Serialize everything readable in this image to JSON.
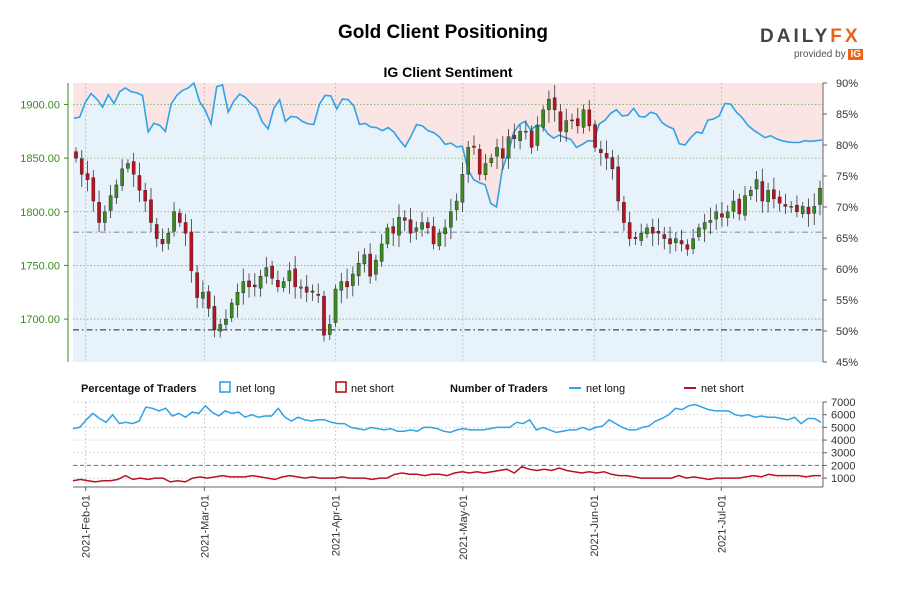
{
  "header": {
    "title": "Gold Client Positioning",
    "brand": {
      "daily": "DAILY",
      "fx": "FX",
      "provided_by": "provided by",
      "ig": "IG"
    }
  },
  "chart_data": [
    {
      "type": "candlestick",
      "title": "IG Client Sentiment",
      "dates_start": "2021-01-29",
      "price_axis": {
        "ticks": [
          "1700.00",
          "1750.00",
          "1800.00",
          "1850.00",
          "1900.00"
        ],
        "values": [
          1700,
          1750,
          1800,
          1850,
          1900
        ],
        "ylim": [
          1660,
          1920
        ],
        "side": "left",
        "color": "#3c8a1e"
      },
      "pct_axis": {
        "ticks": [
          "45%",
          "50%",
          "55%",
          "60%",
          "65%",
          "70%",
          "75%",
          "80%",
          "85%",
          "90%"
        ],
        "values": [
          45,
          50,
          55,
          60,
          65,
          70,
          75,
          80,
          85,
          90
        ],
        "ylim": [
          45,
          90
        ],
        "side": "right"
      },
      "close": [
        1850,
        1835,
        1830,
        1810,
        1790,
        1800,
        1815,
        1825,
        1840,
        1845,
        1835,
        1820,
        1810,
        1790,
        1775,
        1770,
        1780,
        1800,
        1790,
        1780,
        1745,
        1720,
        1725,
        1710,
        1690,
        1695,
        1700,
        1715,
        1725,
        1735,
        1730,
        1730,
        1740,
        1748,
        1738,
        1730,
        1735,
        1745,
        1730,
        1730,
        1725,
        1725,
        1722,
        1685,
        1695,
        1728,
        1735,
        1730,
        1742,
        1752,
        1760,
        1740,
        1755,
        1770,
        1785,
        1780,
        1795,
        1792,
        1780,
        1785,
        1790,
        1785,
        1770,
        1780,
        1785,
        1800,
        1810,
        1835,
        1860,
        1860,
        1835,
        1845,
        1850,
        1860,
        1850,
        1870,
        1868,
        1875,
        1875,
        1860,
        1880,
        1895,
        1905,
        1895,
        1875,
        1885,
        1885,
        1880,
        1895,
        1880,
        1860,
        1855,
        1850,
        1840,
        1810,
        1790,
        1775,
        1775,
        1780,
        1785,
        1780,
        1780,
        1775,
        1770,
        1775,
        1770,
        1765,
        1775,
        1785,
        1790,
        1792,
        1800,
        1795,
        1800,
        1810,
        1798,
        1815,
        1820,
        1830,
        1810,
        1820,
        1812,
        1808,
        1805,
        1805,
        1800,
        1805,
        1798,
        1805,
        1822
      ]
    },
    {
      "type": "line",
      "title": "Percentage of Traders",
      "series_name": "net long",
      "unit": "%",
      "color": "#2fa3e6",
      "ylim": [
        45,
        90
      ],
      "values": [
        84.3,
        84.5,
        86.9,
        88.3,
        87.4,
        86.1,
        88.1,
        86.7,
        88.6,
        89.2,
        88.6,
        88.4,
        88.0,
        82.1,
        83.5,
        83.2,
        82.2,
        86.6,
        88.0,
        88.8,
        89.2,
        90.0,
        87.0,
        85.6,
        83.4,
        89.4,
        89.7,
        85.3,
        87.1,
        88.2,
        87.7,
        86.7,
        85.9,
        83.7,
        82.6,
        85.9,
        87.3,
        83.8,
        84.6,
        84.5,
        83.8,
        83.4,
        83.3,
        86.6,
        88.0,
        87.9,
        85.8,
        87.4,
        87.3,
        86.3,
        83.3,
        83.5,
        82.9,
        82.8,
        82.3,
        82.8,
        82.1,
        80.8,
        79.7,
        81.4,
        83.3,
        83.1,
        82.3,
        82.0,
        81.3,
        80.1,
        80.3,
        79.7,
        79.8,
        76.0,
        74.4,
        73.9,
        73.6,
        70.6,
        70.0,
        76.0,
        78.7,
        82.0,
        83.3,
        83.8,
        82.4,
        83.2,
        83.1,
        81.8,
        81.1,
        81.6,
        81.2,
        80.9,
        79.6,
        80.1,
        80.7,
        80.6,
        83.4,
        84.0,
        85.1,
        85.7,
        84.7,
        84.8,
        85.9,
        84.6,
        84.5,
        85.3,
        85.0,
        83.6,
        83.0,
        82.6,
        80.2,
        80.0,
        81.2,
        82.1,
        81.9,
        84.0,
        84.2,
        84.7,
        86.7,
        86.6,
        85.3,
        84.4,
        83.2,
        82.4,
        81.8,
        81.2,
        81.5,
        81.0,
        80.7,
        80.5,
        80.4,
        80.4,
        80.7,
        80.6,
        80.7,
        80.8
      ]
    },
    {
      "type": "line",
      "title": "Number of Traders",
      "yticks": [
        "1000",
        "2000",
        "3000",
        "4000",
        "5000",
        "6000",
        "7000"
      ],
      "ytick_values": [
        1000,
        2000,
        3000,
        4000,
        5000,
        6000,
        7000
      ],
      "ylim": [
        300,
        7000
      ],
      "series": [
        {
          "name": "net long",
          "color": "#2fa3e6",
          "values": [
            4900,
            5000,
            5600,
            6100,
            5700,
            5400,
            6000,
            5300,
            5400,
            5300,
            5500,
            6600,
            6500,
            6300,
            6500,
            5900,
            6100,
            5800,
            6200,
            6100,
            6700,
            6200,
            5900,
            6300,
            6100,
            6200,
            5800,
            6000,
            5800,
            5900,
            5900,
            6500,
            5800,
            5500,
            5800,
            5600,
            5500,
            5600,
            5600,
            5400,
            5300,
            5300,
            5000,
            4900,
            4800,
            5000,
            4900,
            4800,
            4900,
            4700,
            4700,
            4800,
            4700,
            5000,
            5000,
            4900,
            4700,
            4600,
            4800,
            4900,
            4800,
            4800,
            4800,
            4900,
            5000,
            5000,
            5000,
            5400,
            5300,
            5600,
            4800,
            5000,
            4800,
            4600,
            4700,
            4800,
            4800,
            5000,
            4800,
            5000,
            5100,
            5600,
            5300,
            5000,
            4800,
            4800,
            5000,
            5100,
            5500,
            5700,
            6000,
            6500,
            6400,
            6700,
            6800,
            6600,
            6400,
            6300,
            6300,
            6300,
            6000,
            5900,
            6000,
            5800,
            5900,
            5800,
            5800,
            5700,
            5600,
            5800,
            5300,
            5700,
            5700,
            5400
          ]
        },
        {
          "name": "net short",
          "color": "#bb1122",
          "values": [
            800,
            900,
            800,
            700,
            800,
            800,
            900,
            1200,
            900,
            1000,
            900,
            1000,
            1000,
            700,
            800,
            700,
            1000,
            1100,
            1000,
            1100,
            1200,
            1100,
            1100,
            1100,
            1200,
            1100,
            1000,
            900,
            1100,
            1200,
            1100,
            1000,
            1100,
            1000,
            1000,
            1000,
            1100,
            1000,
            1000,
            1000,
            900,
            1000,
            1000,
            1300,
            1400,
            1300,
            1300,
            1200,
            1300,
            1300,
            1200,
            1400,
            1500,
            1400,
            1500,
            1400,
            1500,
            1600,
            1700,
            1400,
            1900,
            1700,
            1600,
            1700,
            1600,
            1800,
            1600,
            1500,
            1400,
            1500,
            1400,
            1500,
            1300,
            1200,
            1200,
            1100,
            1000,
            1000,
            1000,
            1000,
            1000,
            1200,
            1000,
            1100,
            1000,
            900,
            1000,
            1000,
            1000,
            1000,
            1100,
            1200,
            1100,
            1300,
            1200,
            1200,
            1200,
            1200,
            1100,
            1200,
            1200
          ]
        }
      ]
    }
  ],
  "legend": {
    "percentage_label": "Percentage of Traders",
    "number_label": "Number of Traders",
    "pct_long": "net long",
    "pct_short": "net short",
    "num_long": "net long",
    "num_short": "net short"
  },
  "x_axis": {
    "labels": [
      "2021-Feb-01",
      "2021-Mar-01",
      "2021-Apr-01",
      "2021-May-01",
      "2021-Jun-01",
      "2021-Jul-01"
    ],
    "label_days": [
      3,
      31,
      62,
      92,
      123,
      153
    ],
    "total_days": 177
  },
  "reference_lines": {
    "price": [
      1690,
      1781
    ],
    "count": [
      2000
    ]
  },
  "colors": {
    "accent": "#e8641c",
    "long": "#2fa3e6",
    "short": "#bb1122",
    "bull_candle": "#3c8a1e",
    "bear_candle": "#bb1122",
    "long_fill": "#e8f2fb",
    "short_fill": "#fae4e4",
    "price_axis": "#3c8a1e"
  }
}
